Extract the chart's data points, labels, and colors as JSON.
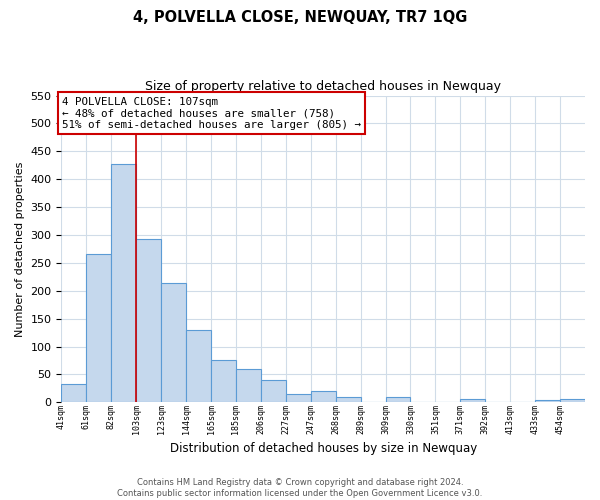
{
  "title": "4, POLVELLA CLOSE, NEWQUAY, TR7 1QG",
  "subtitle": "Size of property relative to detached houses in Newquay",
  "xlabel": "Distribution of detached houses by size in Newquay",
  "ylabel": "Number of detached properties",
  "bar_labels": [
    "41sqm",
    "61sqm",
    "82sqm",
    "103sqm",
    "123sqm",
    "144sqm",
    "165sqm",
    "185sqm",
    "206sqm",
    "227sqm",
    "247sqm",
    "268sqm",
    "289sqm",
    "309sqm",
    "330sqm",
    "351sqm",
    "371sqm",
    "392sqm",
    "413sqm",
    "433sqm",
    "454sqm"
  ],
  "bar_values": [
    32,
    265,
    427,
    293,
    214,
    130,
    76,
    59,
    40,
    15,
    20,
    9,
    0,
    10,
    0,
    0,
    5,
    0,
    0,
    4,
    5
  ],
  "bar_color": "#c5d8ed",
  "bar_edge_color": "#5b9bd5",
  "annotation_line1": "4 POLVELLA CLOSE: 107sqm",
  "annotation_line2": "← 48% of detached houses are smaller (758)",
  "annotation_line3": "51% of semi-detached houses are larger (805) →",
  "annotation_box_color": "#ffffff",
  "annotation_box_edge_color": "#cc0000",
  "marker_line_color": "#cc0000",
  "ylim": [
    0,
    550
  ],
  "yticks": [
    0,
    50,
    100,
    150,
    200,
    250,
    300,
    350,
    400,
    450,
    500,
    550
  ],
  "footer_text": "Contains HM Land Registry data © Crown copyright and database right 2024.\nContains public sector information licensed under the Open Government Licence v3.0.",
  "background_color": "#ffffff",
  "grid_color": "#d0dce8"
}
